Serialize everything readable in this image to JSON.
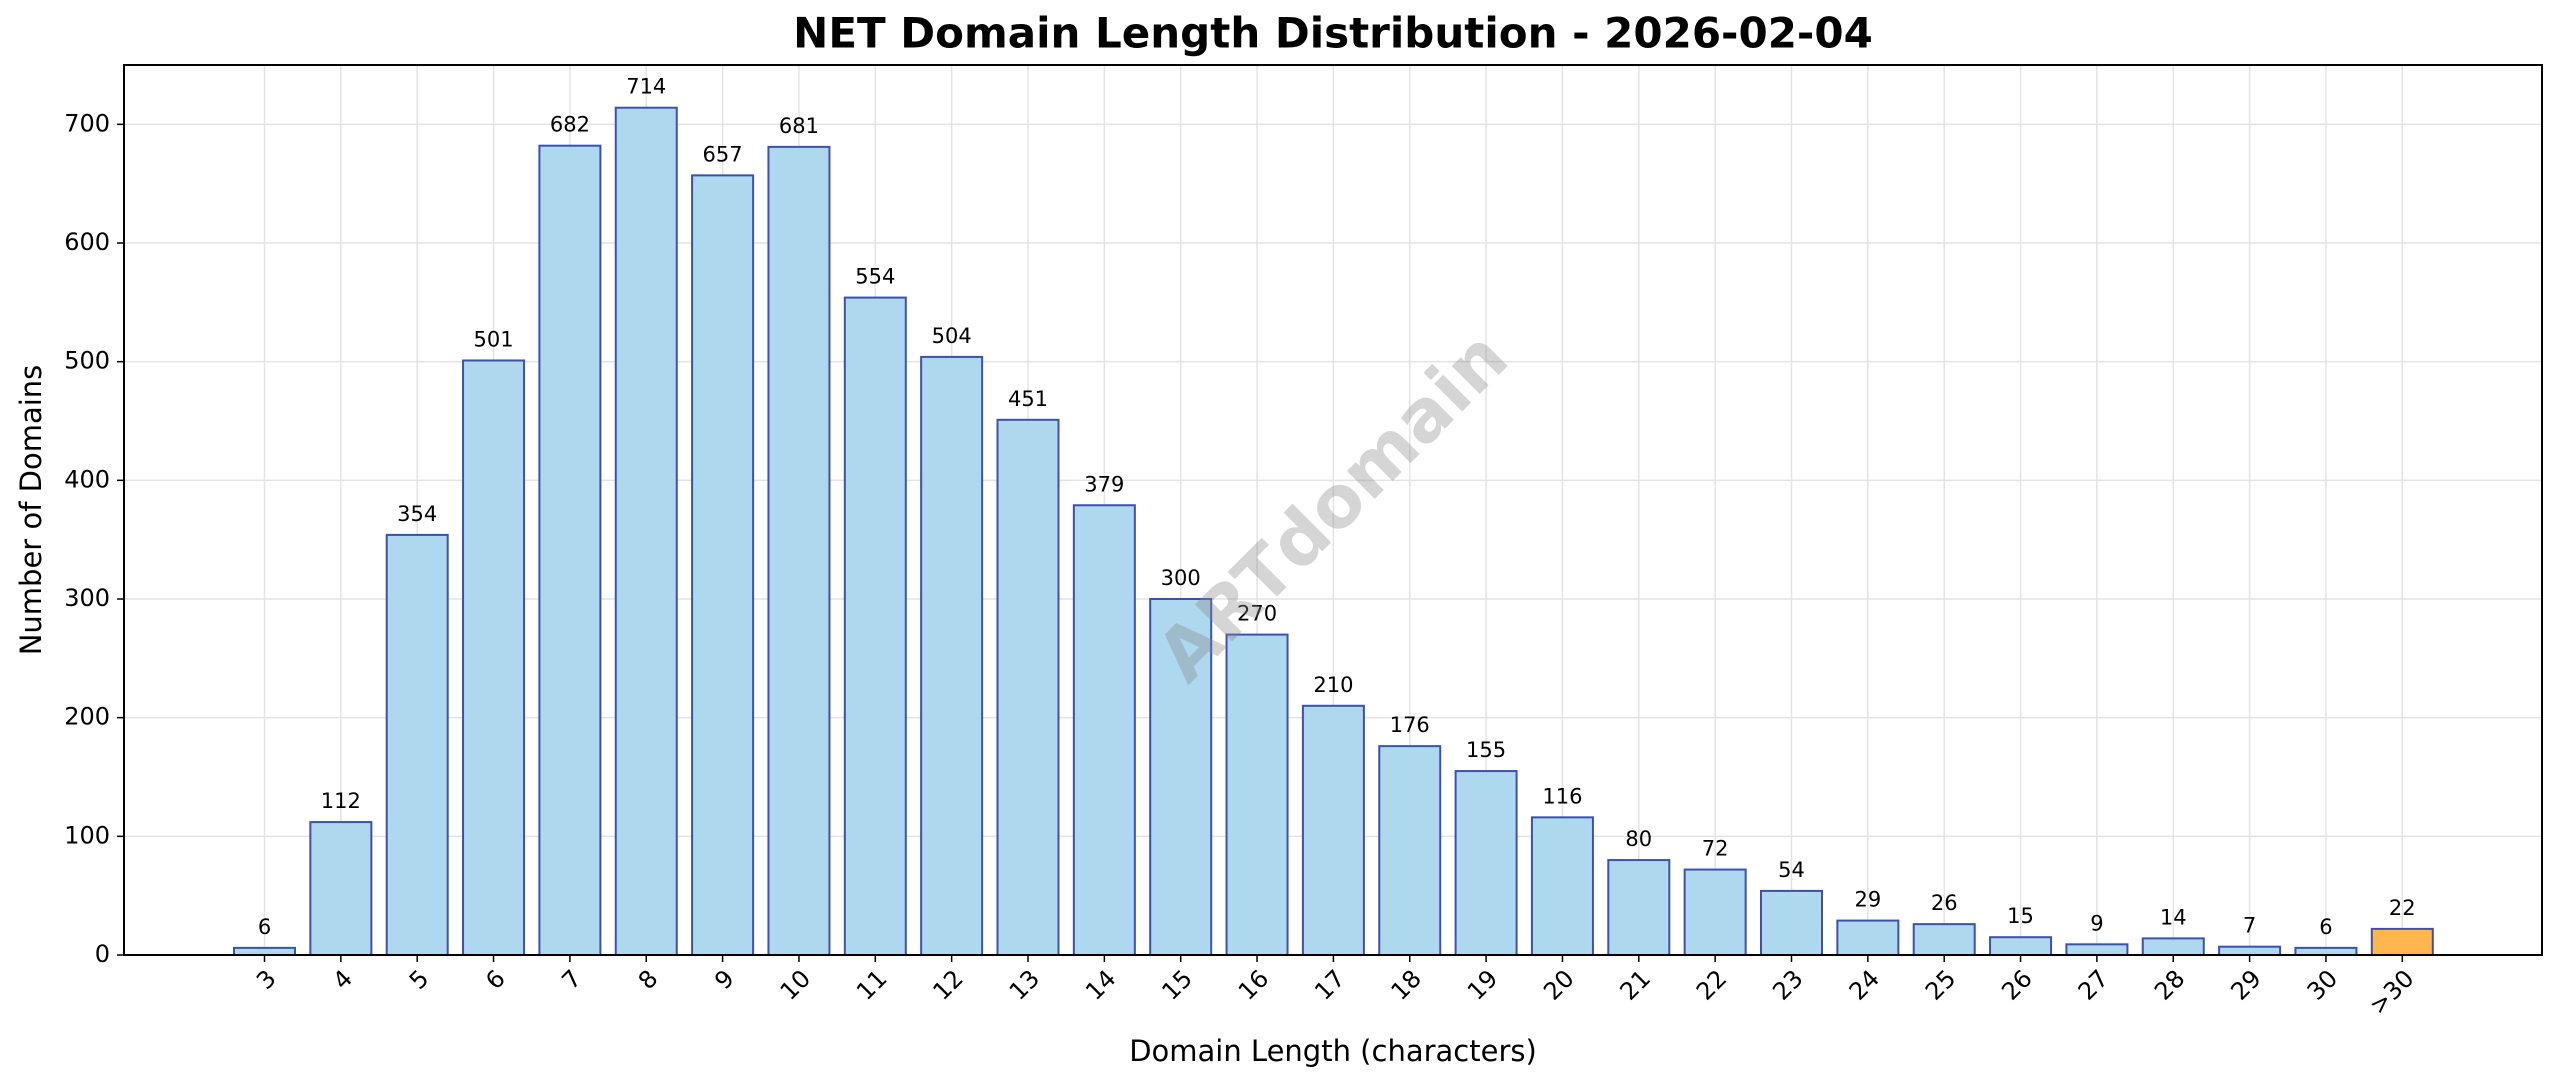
{
  "chart_data": {
    "type": "bar",
    "title": "NET Domain Length Distribution - 2026-02-04",
    "xlabel": "Domain Length (characters)",
    "ylabel": "Number of Domains",
    "watermark": "ARTdomain",
    "categories": [
      "3",
      "4",
      "5",
      "6",
      "7",
      "8",
      "9",
      "10",
      "11",
      "12",
      "13",
      "14",
      "15",
      "16",
      "17",
      "18",
      "19",
      "20",
      "21",
      "22",
      "23",
      "24",
      "25",
      "26",
      "27",
      "28",
      "29",
      "30",
      ">30"
    ],
    "values": [
      6,
      112,
      354,
      501,
      682,
      714,
      657,
      681,
      554,
      504,
      451,
      379,
      300,
      270,
      210,
      176,
      155,
      116,
      80,
      72,
      54,
      29,
      26,
      15,
      9,
      14,
      7,
      6,
      22
    ],
    "colors": [
      "#add8ee",
      "#add8ee",
      "#add8ee",
      "#add8ee",
      "#add8ee",
      "#add8ee",
      "#add8ee",
      "#add8ee",
      "#add8ee",
      "#add8ee",
      "#add8ee",
      "#add8ee",
      "#add8ee",
      "#add8ee",
      "#add8ee",
      "#add8ee",
      "#add8ee",
      "#add8ee",
      "#add8ee",
      "#add8ee",
      "#add8ee",
      "#add8ee",
      "#add8ee",
      "#add8ee",
      "#add8ee",
      "#add8ee",
      "#add8ee",
      "#add8ee",
      "#ffb74d"
    ],
    "edge_color": "#3f4fb0",
    "ylim": [
      0,
      750
    ],
    "yticks": [
      0,
      100,
      200,
      300,
      400,
      500,
      600,
      700
    ],
    "grid": true
  }
}
